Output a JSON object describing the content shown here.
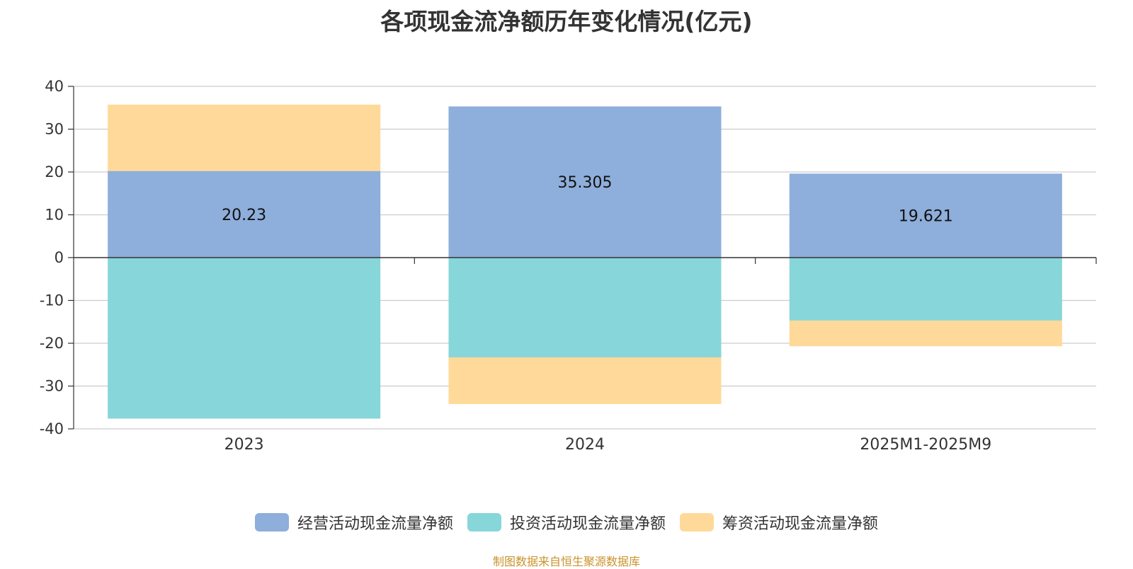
{
  "chart_data": {
    "type": "bar",
    "stacked": true,
    "title": "各项现金流净额历年变化情况(亿元)",
    "categories": [
      "2023",
      "2024",
      "2025M1-2025M9"
    ],
    "ylim": [
      -40,
      40
    ],
    "yticks": [
      40,
      30,
      20,
      10,
      0,
      -10,
      -20,
      -30,
      -40
    ],
    "grid": true,
    "legend_position": "bottom",
    "series": [
      {
        "name": "经营活动现金流量净额",
        "color": "#8eaedb",
        "values": [
          20.23,
          35.305,
          19.621
        ],
        "labels": [
          "20.23",
          "35.305",
          "19.621"
        ]
      },
      {
        "name": "投资活动现金流量净额",
        "color": "#87d6d9",
        "values": [
          -37.6,
          -23.3,
          -14.7
        ]
      },
      {
        "name": "筹资活动现金流量净额",
        "color": "#ffd999",
        "values": [
          15.5,
          -10.9,
          -6.0
        ]
      }
    ]
  },
  "source": "制图数据来自恒生聚源数据库"
}
